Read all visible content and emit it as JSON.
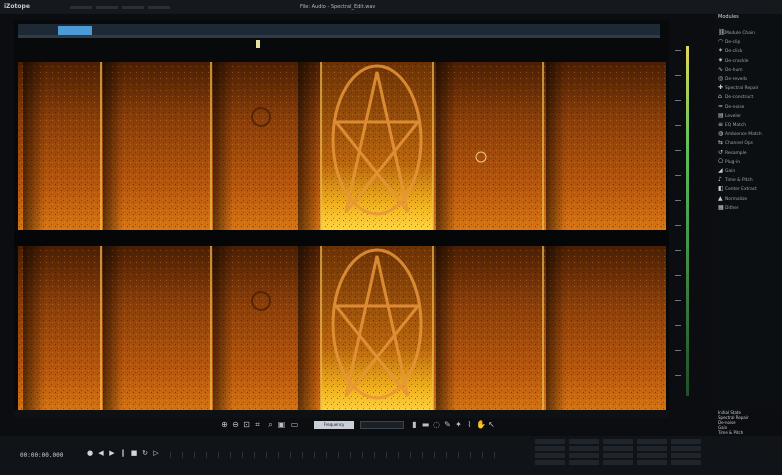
{
  "app": {
    "logo": "iZotope",
    "window_title": "File: Audio - Spectral_Edit.wav"
  },
  "side_panel": {
    "header": "Modules",
    "items": [
      {
        "label": "Module Chain",
        "icon": "chain-icon"
      },
      {
        "label": "De-clip",
        "icon": "wave-icon"
      },
      {
        "label": "De-click",
        "icon": "click-icon"
      },
      {
        "label": "De-crackle",
        "icon": "crackle-icon"
      },
      {
        "label": "De-hum",
        "icon": "hum-icon"
      },
      {
        "label": "De-reverb",
        "icon": "reverb-icon"
      },
      {
        "label": "Spectral Repair",
        "icon": "repair-icon"
      },
      {
        "label": "De-construct",
        "icon": "construct-icon"
      },
      {
        "label": "De-noise",
        "icon": "noise-icon"
      },
      {
        "label": "Leveler",
        "icon": "leveler-icon"
      },
      {
        "label": "EQ Match",
        "icon": "eq-icon"
      },
      {
        "label": "Ambience Match",
        "icon": "ambience-icon"
      },
      {
        "label": "Channel Ops",
        "icon": "channel-icon"
      },
      {
        "label": "Resample",
        "icon": "resample-icon"
      },
      {
        "label": "Plug-in",
        "icon": "plugin-icon"
      },
      {
        "label": "Gain",
        "icon": "gain-icon"
      },
      {
        "label": "Time & Pitch",
        "icon": "pitch-icon"
      },
      {
        "label": "Center Extract",
        "icon": "extract-icon"
      },
      {
        "label": "Normalize",
        "icon": "normalize-icon"
      },
      {
        "label": "Dither",
        "icon": "dither-icon"
      }
    ]
  },
  "history": {
    "items": [
      "Initial State",
      "Spectral Repair",
      "De-noise",
      "Gain",
      "Time & Pitch"
    ]
  },
  "toolbar": {
    "field_label": "Frequency"
  },
  "transport": {
    "time": "00:00:00.000"
  },
  "colors": {
    "spectrogram_low": "#5a2a08",
    "spectrogram_high": "#f2b21a",
    "accent": "#4c9ad6"
  }
}
